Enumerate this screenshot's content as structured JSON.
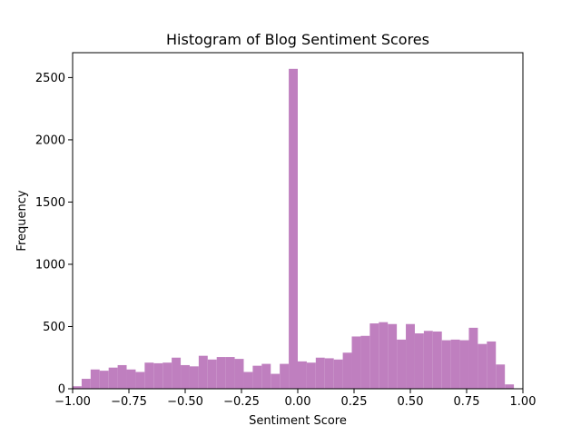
{
  "chart_data": {
    "type": "bar",
    "title": "Histogram of Blog Sentiment Scores",
    "xlabel": "Sentiment Score",
    "ylabel": "Frequency",
    "xlim": [
      -1.0,
      1.0
    ],
    "ylim": [
      0,
      2700
    ],
    "bin_width": 0.04,
    "bins_start": -1.0,
    "values": [
      20,
      80,
      155,
      145,
      170,
      190,
      155,
      135,
      210,
      205,
      210,
      250,
      190,
      180,
      265,
      235,
      255,
      255,
      240,
      135,
      185,
      200,
      120,
      200,
      2570,
      220,
      210,
      250,
      245,
      235,
      290,
      420,
      425,
      525,
      535,
      520,
      395,
      520,
      445,
      465,
      460,
      390,
      395,
      390,
      490,
      360,
      380,
      195,
      35,
      0
    ],
    "bar_color": "#BF7FBF",
    "xticks": [
      -1.0,
      -0.75,
      -0.5,
      -0.25,
      0.0,
      0.25,
      0.5,
      0.75,
      1.0
    ],
    "xtick_labels": [
      "−1.00",
      "−0.75",
      "−0.50",
      "−0.25",
      "0.00",
      "0.25",
      "0.50",
      "0.75",
      "1.00"
    ],
    "yticks": [
      0,
      500,
      1000,
      1500,
      2000,
      2500
    ],
    "ytick_labels": [
      "0",
      "500",
      "1000",
      "1500",
      "2000",
      "2500"
    ],
    "grid": false,
    "legend": "none"
  }
}
